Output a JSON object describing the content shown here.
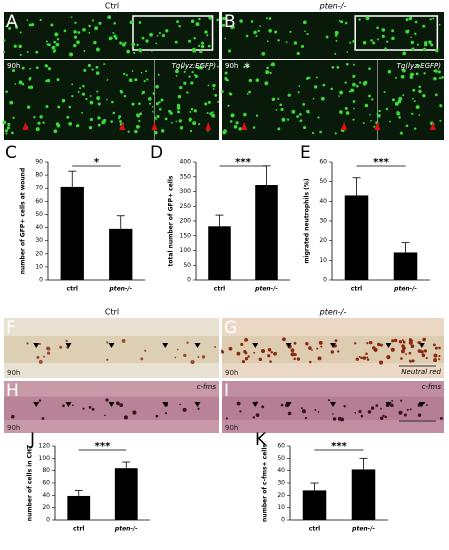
{
  "figure": {
    "headers_top": [
      "Ctrl",
      "pten-/-"
    ],
    "headers_middle": [
      "Ctrl",
      "pten-/-"
    ],
    "panels": [
      {
        "label": "A",
        "time": "90h",
        "tag": "Tg(lyz:EGFP)"
      },
      {
        "label": "B",
        "time": "90h",
        "mark": "*",
        "tag": "Tg(lyz:EGFP)"
      },
      {
        "label": "F",
        "time": "90h"
      },
      {
        "label": "G",
        "time": "90h",
        "tag": "Neutral red"
      },
      {
        "label": "H",
        "time": "90h",
        "tag": "c-fms"
      },
      {
        "label": "I",
        "time": "90h",
        "tag": "c-fms"
      }
    ]
  },
  "chart_data": [
    {
      "type": "bar",
      "label": "C",
      "y_label": "number of GFP+ cells at wound",
      "categories": [
        "ctrl",
        "pten-/-"
      ],
      "values": [
        71,
        39
      ],
      "errors": [
        12,
        10
      ],
      "color": "#000000",
      "ylim": [
        0,
        90
      ],
      "yticks": [
        0,
        10,
        20,
        30,
        40,
        50,
        60,
        70,
        80,
        90
      ],
      "significance": "*"
    },
    {
      "type": "bar",
      "label": "D",
      "y_label": "total number of GFP+ cells",
      "categories": [
        "ctrl",
        "pten-/-"
      ],
      "values": [
        182,
        322
      ],
      "errors": [
        38,
        65
      ],
      "color": "#000000",
      "ylim": [
        0,
        400
      ],
      "yticks": [
        0,
        50,
        100,
        150,
        200,
        250,
        300,
        350,
        400
      ],
      "significance": "***"
    },
    {
      "type": "bar",
      "label": "E",
      "y_label": "migrated neutrophils (%)",
      "categories": [
        "ctrl",
        "pten-/-"
      ],
      "values": [
        43,
        14
      ],
      "errors": [
        9,
        5
      ],
      "color": "#000000",
      "ylim": [
        0,
        60
      ],
      "yticks": [
        0,
        10,
        20,
        30,
        40,
        50,
        60
      ],
      "significance": "***"
    },
    {
      "type": "bar",
      "label": "J",
      "y_label": "number of cells in CHT",
      "categories": [
        "ctrl",
        "pten-/-"
      ],
      "values": [
        39,
        84
      ],
      "errors": [
        9,
        10
      ],
      "color": "#000000",
      "ylim": [
        0,
        120
      ],
      "yticks": [
        0,
        20,
        40,
        60,
        80,
        100,
        120
      ],
      "significance": "***"
    },
    {
      "type": "bar",
      "label": "K",
      "y_label": "number of c-fms+ cells",
      "categories": [
        "ctrl",
        "pten-/-"
      ],
      "values": [
        24,
        41
      ],
      "errors": [
        6,
        9
      ],
      "color": "#000000",
      "ylim": [
        0,
        60
      ],
      "yticks": [
        0,
        10,
        20,
        30,
        40,
        50,
        60
      ],
      "significance": "***"
    }
  ]
}
